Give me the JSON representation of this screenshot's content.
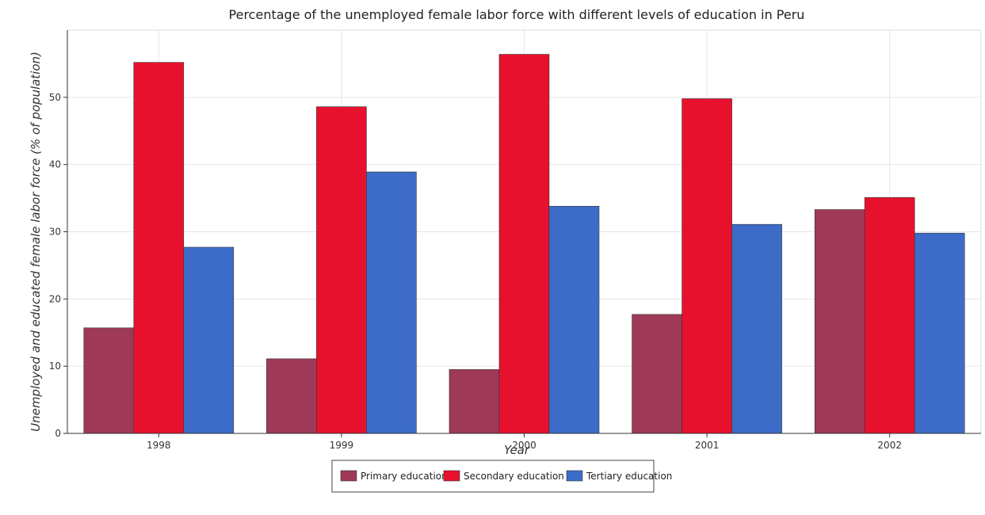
{
  "chart_data": {
    "type": "bar",
    "title": "Percentage of the unemployed female labor force with different levels of education in Peru",
    "xlabel": "Year",
    "ylabel": "Unemployed and educated female labor force (% of population)",
    "categories": [
      "1998",
      "1999",
      "2000",
      "2001",
      "2002"
    ],
    "ylim": [
      0,
      60
    ],
    "yticks": [
      0,
      10,
      20,
      30,
      40,
      50
    ],
    "grid": true,
    "legend_position": "bottom-center",
    "series": [
      {
        "name": "Primary education",
        "color": "#9e3a57",
        "values": [
          15.7,
          11.1,
          9.5,
          17.7,
          33.3
        ]
      },
      {
        "name": "Secondary education",
        "color": "#e8112d",
        "values": [
          55.2,
          48.6,
          56.4,
          49.8,
          35.1
        ]
      },
      {
        "name": "Tertiary education",
        "color": "#3d6cc8",
        "values": [
          27.7,
          38.9,
          33.8,
          31.1,
          29.8
        ]
      }
    ]
  }
}
